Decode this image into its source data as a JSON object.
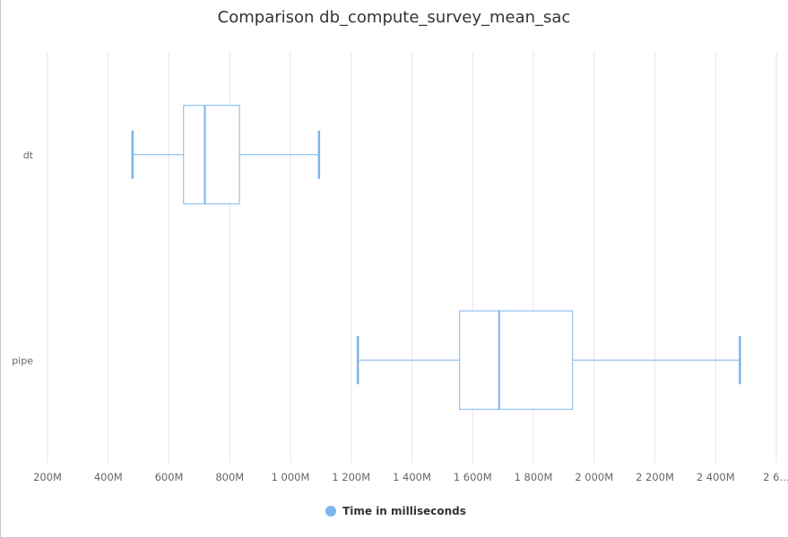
{
  "chart_data": {
    "type": "boxplot",
    "title": "Comparison db_compute_survey_mean_sac",
    "orientation": "horizontal",
    "xlim": [
      200,
      2700
    ],
    "x_ticks": [
      200,
      400,
      600,
      800,
      1000,
      1200,
      1400,
      1600,
      1800,
      2000,
      2200,
      2400,
      2600
    ],
    "x_tick_labels": [
      "200M",
      "400M",
      "600M",
      "800M",
      "1 000M",
      "1 200M",
      "1 400M",
      "1 600M",
      "1 800M",
      "2 000M",
      "2 200M",
      "2 400M",
      "2 6…"
    ],
    "grid": true,
    "legend_position": "bottom",
    "series": [
      {
        "name": "Time in milliseconds",
        "color": "#7cb5ec",
        "boxes": [
          {
            "category": "dt",
            "low": 480,
            "q1": 648,
            "median": 718,
            "q3": 832,
            "high": 1094
          },
          {
            "category": "pipe",
            "low": 1222,
            "q1": 1557,
            "median": 1687,
            "q3": 1929,
            "high": 2480
          }
        ]
      }
    ]
  }
}
